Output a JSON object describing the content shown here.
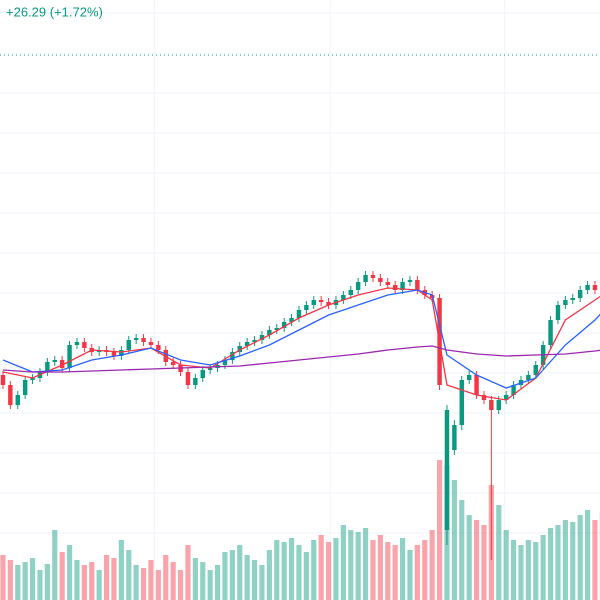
{
  "chart_data": {
    "type": "candlestick",
    "change_text": "+26.29 (+1.72%)",
    "xlim": [
      -0.4,
      80.68
    ],
    "ylim": [
      0,
      600
    ],
    "volume_ylim": [
      0,
      600
    ],
    "up_color": "#089981",
    "down_color": "#f23645",
    "price_line": 545,
    "price_line_color": "#089981",
    "ygrid": [
      587,
      547,
      507,
      467,
      427,
      387,
      347,
      307,
      267,
      227,
      187,
      147,
      107,
      67
    ],
    "xgrid": [
      20.5,
      44.2,
      67.8
    ],
    "open": [
      225,
      215,
      195,
      205,
      220,
      222,
      228,
      238,
      240,
      232,
      255,
      258,
      252,
      248,
      250,
      248,
      244,
      250,
      260,
      262,
      258,
      255,
      250,
      238,
      235,
      228,
      215,
      222,
      230,
      232,
      235,
      240,
      248,
      254,
      258,
      260,
      265,
      270,
      272,
      278,
      282,
      290,
      295,
      300,
      298,
      295,
      300,
      305,
      310,
      318,
      325,
      322,
      318,
      315,
      310,
      318,
      320,
      310,
      305,
      302,
      70,
      150,
      175,
      220,
      225,
      205,
      200,
      190,
      200,
      205,
      215,
      220,
      225,
      235,
      255,
      280,
      295,
      300,
      302,
      310,
      315,
      310
    ],
    "high": [
      229,
      219,
      209,
      224,
      226,
      232,
      242,
      244,
      244,
      259,
      262,
      262,
      256,
      254,
      254,
      252,
      254,
      264,
      266,
      266,
      262,
      259,
      254,
      242,
      239,
      232,
      226,
      234,
      236,
      239,
      244,
      252,
      258,
      262,
      264,
      269,
      274,
      276,
      282,
      286,
      294,
      299,
      304,
      304,
      302,
      304,
      309,
      314,
      322,
      329,
      329,
      326,
      322,
      319,
      322,
      324,
      324,
      314,
      309,
      306,
      195,
      180,
      224,
      229,
      229,
      209,
      204,
      204,
      209,
      219,
      224,
      229,
      239,
      259,
      284,
      299,
      304,
      306,
      314,
      319,
      319,
      329
    ],
    "low": [
      211,
      191,
      191,
      201,
      216,
      218,
      224,
      234,
      228,
      228,
      251,
      248,
      244,
      244,
      244,
      240,
      240,
      246,
      256,
      254,
      251,
      246,
      234,
      231,
      224,
      211,
      211,
      218,
      226,
      228,
      231,
      236,
      244,
      250,
      254,
      256,
      261,
      266,
      268,
      274,
      278,
      286,
      291,
      294,
      291,
      291,
      296,
      301,
      306,
      314,
      318,
      314,
      311,
      306,
      306,
      314,
      306,
      301,
      298,
      210,
      55,
      145,
      170,
      216,
      201,
      196,
      40,
      186,
      196,
      201,
      211,
      216,
      221,
      231,
      251,
      276,
      291,
      296,
      298,
      306,
      306,
      306
    ],
    "close": [
      215,
      195,
      205,
      220,
      222,
      228,
      238,
      240,
      232,
      255,
      258,
      252,
      248,
      250,
      248,
      244,
      250,
      260,
      262,
      258,
      255,
      250,
      238,
      235,
      228,
      215,
      222,
      230,
      232,
      235,
      240,
      248,
      254,
      258,
      260,
      265,
      270,
      272,
      278,
      282,
      290,
      295,
      300,
      298,
      295,
      300,
      305,
      310,
      318,
      325,
      322,
      318,
      315,
      310,
      318,
      320,
      310,
      305,
      302,
      215,
      190,
      175,
      220,
      225,
      205,
      200,
      190,
      200,
      205,
      215,
      220,
      225,
      235,
      255,
      280,
      295,
      300,
      302,
      310,
      315,
      310,
      325
    ],
    "volume": [
      45,
      40,
      35,
      38,
      42,
      30,
      36,
      70,
      48,
      55,
      40,
      35,
      38,
      30,
      45,
      42,
      60,
      50,
      35,
      32,
      40,
      30,
      45,
      38,
      30,
      55,
      42,
      38,
      30,
      35,
      48,
      50,
      55,
      45,
      40,
      35,
      50,
      60,
      58,
      62,
      55,
      48,
      60,
      65,
      58,
      62,
      75,
      70,
      68,
      72,
      60,
      65,
      58,
      55,
      62,
      50,
      55,
      60,
      70,
      140,
      135,
      120,
      100,
      85,
      80,
      75,
      115,
      95,
      70,
      60,
      55,
      60,
      58,
      65,
      72,
      75,
      80,
      78,
      85,
      90,
      80,
      88
    ],
    "lines": [
      {
        "color": "#f23645",
        "x": [
          0,
          4,
          8,
          12,
          16,
          20,
          24,
          28,
          32,
          36,
          40,
          44,
          48,
          52,
          56,
          58,
          60,
          64,
          68,
          72,
          76,
          80,
          81
        ],
        "values": [
          228,
          222,
          235,
          250,
          248,
          252,
          235,
          232,
          250,
          265,
          282,
          295,
          305,
          312,
          310,
          300,
          215,
          205,
          200,
          222,
          280,
          300,
          305
        ]
      },
      {
        "color": "#2962ff",
        "x": [
          0,
          4,
          8,
          12,
          16,
          20,
          24,
          28,
          32,
          36,
          40,
          44,
          48,
          52,
          56,
          58,
          60,
          64,
          68,
          72,
          76,
          80,
          81
        ],
        "values": [
          240,
          228,
          230,
          240,
          245,
          252,
          240,
          235,
          244,
          255,
          270,
          285,
          295,
          305,
          310,
          305,
          245,
          225,
          212,
          222,
          255,
          280,
          288
        ]
      },
      {
        "color": "#9c27b0",
        "x": [
          0,
          4,
          8,
          12,
          16,
          20,
          24,
          28,
          32,
          36,
          40,
          44,
          48,
          52,
          56,
          58,
          60,
          64,
          68,
          72,
          76,
          80,
          81
        ],
        "values": [
          230,
          228,
          228,
          229,
          230,
          231,
          232,
          233,
          234,
          237,
          240,
          243,
          246,
          250,
          253,
          254,
          250,
          246,
          244,
          245,
          246,
          249,
          250
        ]
      }
    ]
  }
}
